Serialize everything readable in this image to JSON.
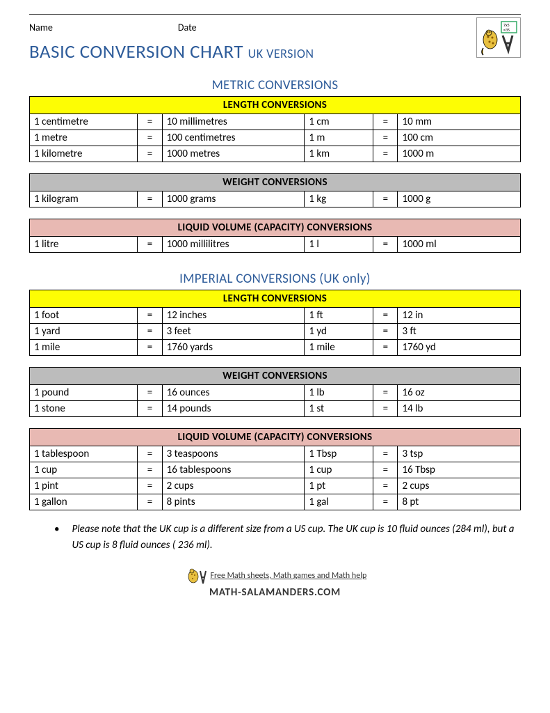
{
  "header": {
    "name_label": "Name",
    "date_label": "Date"
  },
  "title_main": "BASIC CONVERSION CHART",
  "title_sub": "UK VERSION",
  "sections": [
    {
      "heading": "METRIC CONVERSIONS",
      "tables": [
        {
          "header": "LENGTH CONVERSIONS",
          "header_color": "hdr-yellow",
          "rows": [
            [
              "1 centimetre",
              "=",
              "10 millimetres",
              "1 cm",
              "=",
              "10 mm"
            ],
            [
              "1 metre",
              "=",
              "100 centimetres",
              "1 m",
              "=",
              "100 cm"
            ],
            [
              "1 kilometre",
              "=",
              "1000 metres",
              "1 km",
              "=",
              "1000 m"
            ]
          ]
        },
        {
          "header": "WEIGHT CONVERSIONS",
          "header_color": "hdr-grey",
          "rows": [
            [
              "1 kilogram",
              "=",
              "1000 grams",
              "1 kg",
              "=",
              "1000 g"
            ]
          ]
        },
        {
          "header": "LIQUID VOLUME (CAPACITY) CONVERSIONS",
          "header_color": "hdr-pink",
          "rows": [
            [
              "1 litre",
              "=",
              "1000 millilitres",
              "1 l",
              "=",
              "1000 ml"
            ]
          ]
        }
      ]
    },
    {
      "heading": "IMPERIAL CONVERSIONS (UK only)",
      "tables": [
        {
          "header": "LENGTH CONVERSIONS",
          "header_color": "hdr-yellow",
          "rows": [
            [
              "1 foot",
              "=",
              "12 inches",
              "1 ft",
              "=",
              "12 in"
            ],
            [
              "1 yard",
              "=",
              "3 feet",
              "1 yd",
              "=",
              "3 ft"
            ],
            [
              "1 mile",
              "=",
              "1760 yards",
              "1 mile",
              "=",
              "1760 yd"
            ]
          ]
        },
        {
          "header": "WEIGHT CONVERSIONS",
          "header_color": "hdr-grey",
          "rows": [
            [
              "1 pound",
              "=",
              "16 ounces",
              "1 lb",
              "=",
              "16 oz"
            ],
            [
              "1 stone",
              "=",
              "14 pounds",
              "1 st",
              "=",
              "14 lb"
            ]
          ]
        },
        {
          "header": "LIQUID VOLUME (CAPACITY) CONVERSIONS",
          "header_color": "hdr-pink",
          "rows": [
            [
              "1 tablespoon",
              "=",
              "3 teaspoons",
              "1 Tbsp",
              "=",
              "3 tsp"
            ],
            [
              "1 cup",
              "=",
              "16 tablespoons",
              "1 cup",
              "=",
              "16 Tbsp"
            ],
            [
              "1 pint",
              "=",
              "2 cups",
              "1 pt",
              "=",
              "2 cups"
            ],
            [
              "1 gallon",
              "=",
              "8 pints",
              "1 gal",
              "=",
              "8 pt"
            ]
          ]
        }
      ]
    }
  ],
  "note": "Please note that the UK cup is a different size from a US cup. The UK cup is 10 fluid ounces (284 ml), but a US cup is 8 fluid ounces ( 236 ml).",
  "footer": {
    "tagline": "Free Math sheets, Math games and Math help",
    "site": "MATH-SALAMANDERS.COM"
  },
  "colors": {
    "title_blue": "#2e5c9a",
    "yellow": "#fdfd04",
    "grey": "#bcbcbc",
    "pink": "#e8b9b3"
  }
}
